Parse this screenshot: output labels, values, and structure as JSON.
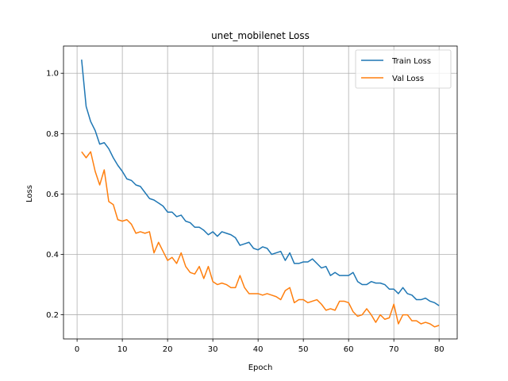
{
  "chart_data": {
    "type": "line",
    "title": "unet_mobilenet Loss",
    "xlabel": "Epoch",
    "ylabel": "Loss",
    "xlim": [
      -3,
      84
    ],
    "ylim": [
      0.12,
      1.09
    ],
    "xticks": [
      0,
      10,
      20,
      30,
      40,
      50,
      60,
      70,
      80
    ],
    "yticks": [
      0.2,
      0.4,
      0.6,
      0.8,
      1.0
    ],
    "ytick_labels": [
      "0.2",
      "0.4",
      "0.6",
      "0.8",
      "1.0"
    ],
    "grid": true,
    "legend_position": "top-right",
    "colors": {
      "train": "#1f77b4",
      "val": "#ff7f0e"
    },
    "x": [
      1,
      2,
      3,
      4,
      5,
      6,
      7,
      8,
      9,
      10,
      11,
      12,
      13,
      14,
      15,
      16,
      17,
      18,
      19,
      20,
      21,
      22,
      23,
      24,
      25,
      26,
      27,
      28,
      29,
      30,
      31,
      32,
      33,
      34,
      35,
      36,
      37,
      38,
      39,
      40,
      41,
      42,
      43,
      44,
      45,
      46,
      47,
      48,
      49,
      50,
      51,
      52,
      53,
      54,
      55,
      56,
      57,
      58,
      59,
      60,
      61,
      62,
      63,
      64,
      65,
      66,
      67,
      68,
      69,
      70,
      71,
      72,
      73,
      74,
      75,
      76,
      77,
      78,
      79,
      80
    ],
    "series": [
      {
        "name": "Train Loss",
        "values": [
          1.045,
          0.89,
          0.84,
          0.81,
          0.765,
          0.77,
          0.75,
          0.72,
          0.695,
          0.675,
          0.65,
          0.645,
          0.63,
          0.625,
          0.605,
          0.585,
          0.58,
          0.57,
          0.56,
          0.54,
          0.54,
          0.525,
          0.53,
          0.51,
          0.505,
          0.49,
          0.49,
          0.48,
          0.465,
          0.475,
          0.46,
          0.475,
          0.47,
          0.465,
          0.455,
          0.43,
          0.435,
          0.44,
          0.42,
          0.415,
          0.425,
          0.42,
          0.4,
          0.405,
          0.41,
          0.38,
          0.405,
          0.37,
          0.37,
          0.375,
          0.375,
          0.385,
          0.37,
          0.355,
          0.36,
          0.33,
          0.34,
          0.33,
          0.33,
          0.33,
          0.34,
          0.31,
          0.3,
          0.3,
          0.31,
          0.305,
          0.305,
          0.3,
          0.285,
          0.285,
          0.27,
          0.29,
          0.27,
          0.265,
          0.25,
          0.25,
          0.255,
          0.245,
          0.24,
          0.23
        ]
      },
      {
        "name": "Val Loss",
        "values": [
          0.74,
          0.72,
          0.74,
          0.675,
          0.63,
          0.68,
          0.575,
          0.565,
          0.515,
          0.51,
          0.515,
          0.5,
          0.47,
          0.475,
          0.47,
          0.475,
          0.405,
          0.44,
          0.41,
          0.38,
          0.39,
          0.37,
          0.405,
          0.36,
          0.34,
          0.335,
          0.36,
          0.32,
          0.36,
          0.31,
          0.3,
          0.305,
          0.3,
          0.29,
          0.29,
          0.33,
          0.29,
          0.27,
          0.27,
          0.27,
          0.265,
          0.27,
          0.265,
          0.26,
          0.25,
          0.28,
          0.29,
          0.24,
          0.25,
          0.25,
          0.24,
          0.245,
          0.25,
          0.235,
          0.215,
          0.22,
          0.215,
          0.245,
          0.245,
          0.24,
          0.21,
          0.195,
          0.2,
          0.22,
          0.2,
          0.175,
          0.2,
          0.185,
          0.19,
          0.235,
          0.17,
          0.2,
          0.2,
          0.18,
          0.18,
          0.17,
          0.175,
          0.17,
          0.16,
          0.165
        ]
      }
    ]
  }
}
